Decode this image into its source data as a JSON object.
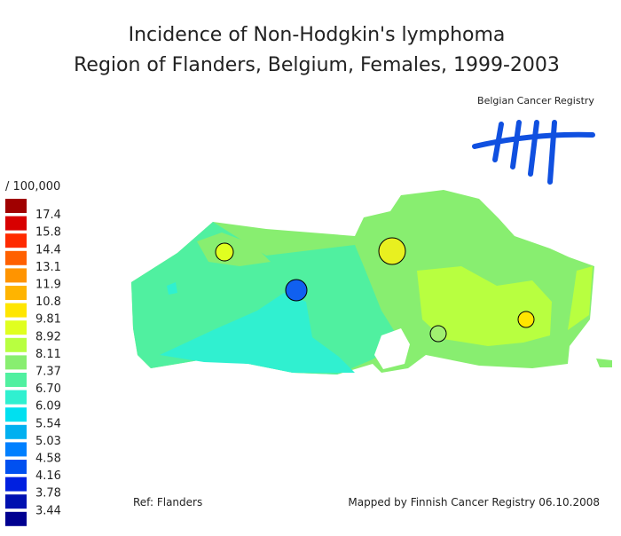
{
  "header": {
    "title": "Incidence of Non-Hodgkin's lymphoma",
    "subtitle": "Region of Flanders, Belgium, Females, 1999-2003"
  },
  "legend": {
    "unit": "/ 100,000",
    "swatches": [
      "#a00000",
      "#d80000",
      "#ff2a00",
      "#ff6000",
      "#ff9400",
      "#ffb400",
      "#ffe600",
      "#e0ff20",
      "#b8ff40",
      "#88ee70",
      "#50f0a0",
      "#30f0d0",
      "#00e0f0",
      "#00b0f0",
      "#0080ff",
      "#0050f0",
      "#0020e0",
      "#0010b0",
      "#000090"
    ],
    "breaks": [
      "17.4",
      "15.8",
      "14.4",
      "13.1",
      "11.9",
      "10.8",
      "9.81",
      "8.92",
      "8.11",
      "7.37",
      "6.70",
      "6.09",
      "5.54",
      "5.03",
      "4.58",
      "4.16",
      "3.78",
      "3.44"
    ]
  },
  "logo": {
    "text": "Belgian Cancer Registry"
  },
  "footer": {
    "ref": "Ref: Flanders",
    "credit": "Mapped by Finnish Cancer Registry 06.10.2008"
  }
}
